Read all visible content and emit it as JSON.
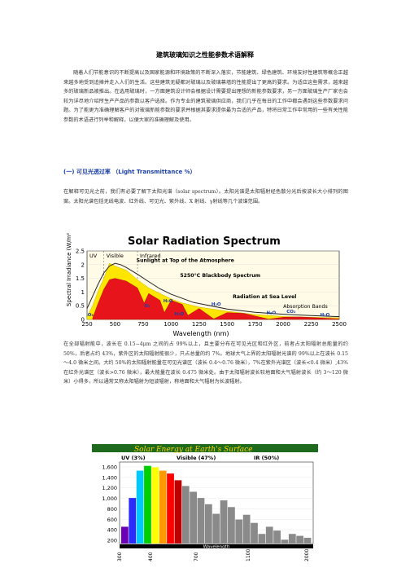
{
  "title": "建筑玻璃知识之性能参数术语解释",
  "intro": "随着人们节能意识的不断提高以及国家能源和环境政策的不断深入落实，节能建筑、绿色建筑、环境友好性建筑等概念正越来越多地受到追捧并走入人们的生活。这些建筑无疑都对玻璃以及玻璃幕墙的性能提出了更高的要求。为适应这些需求，越来越多的玻璃新品被推出。在选用玻璃时，一方面建筑设计师会根据设计需要提出理想的新能参数要求，另一方面玻璃生产厂家也会较为详尽地介绍所生产产品的参数以客户选择。作为专业的建筑玻璃供应商，我们几乎在每日的工作中都会遇到这些参数要求问题。为了能更为准确理解客户的对玻璃新能参数的要求并根据其要求提供最为合适的产品，特将日常工作中常用的一些有关性能参数的术语进行列举和解释，以便大家的准确理解及使用。",
  "section_heading": "(一) 可见光透过率 （Light Transmittance %）",
  "para2": "在解释可见光之前，我们有必要了解下太阳光谱（solar spectrum）。太阳光谱是太阳辐射经色散分光后按波长大小排列的图案。太阳光谱包括无线电波、红外线、可见光、紫外线、X 射线、γ射线等几个波谱范围。",
  "para3": "在全部辐射能中，波长在 0.15−4μm 之间的占 99%以上，且主要分布在可见光区和红外区，前者占太阳辐射总能量的约 50%，后者占约 43%，紫外区的太阳辐射能很少，只占总量的约 7%。地球大气上界的太阳辐射光谱的 99%以上在波长 0.15～4.0 微米之间。大约 50%的太阳辐射能量在可见光谱区（波长 0.4～0.76 微米），7%在紫外光谱区（波长<0.4 微米）,43%在红外光谱区（波长>0.76 微米），最大能量在波长 0.475 微米处。由于太阳辐射波长较地面和大气辐射波长（约 3～120 微米）小得多，所以通常又称太阳辐射为短波辐射，称地面和大气辐射为长波辐射。",
  "chart_data": [
    {
      "type": "area",
      "title": "Solar Radiation Spectrum",
      "xlabel": "Wavelength (nm)",
      "ylabel": "Spectral Irradiance (W/m²/nm)",
      "xlim": [
        250,
        2500
      ],
      "ylim": [
        0,
        2.5
      ],
      "x_ticks": [
        250,
        500,
        750,
        1000,
        1250,
        1500,
        1750,
        2000,
        2250,
        2500
      ],
      "y_ticks": [
        0,
        0.5,
        1,
        1.5,
        2,
        2.5
      ],
      "region_labels": [
        "UV",
        "Visible",
        "Infrared"
      ],
      "annotations": [
        "Sunlight at Top of the Atmosphere",
        "5250°C Blackbody Spectrum",
        "Radiation at Sea Level",
        "Absorption Bands"
      ],
      "absorption_labels": [
        "H₂O",
        "O₂",
        "O₃",
        "CO₂"
      ],
      "series": [
        {
          "name": "Sunlight at Top of the Atmosphere",
          "x": [
            250,
            300,
            350,
            400,
            450,
            500,
            550,
            600,
            700,
            800,
            900,
            1000,
            1100,
            1250,
            1500,
            1750,
            2000,
            2250,
            2500
          ],
          "y": [
            0.1,
            0.5,
            1.05,
            1.5,
            2.05,
            1.95,
            1.87,
            1.8,
            1.45,
            1.15,
            0.95,
            0.75,
            0.6,
            0.45,
            0.3,
            0.18,
            0.11,
            0.08,
            0.06
          ]
        },
        {
          "name": "Radiation at Sea Level",
          "x": [
            300,
            350,
            400,
            450,
            500,
            550,
            600,
            700,
            760,
            800,
            900,
            940,
            1000,
            1100,
            1150,
            1250,
            1380,
            1500,
            1650,
            1870,
            2000,
            2150,
            2300,
            2500
          ],
          "y": [
            0.05,
            0.6,
            1.1,
            1.45,
            1.5,
            1.45,
            1.4,
            1.15,
            0.6,
            0.95,
            0.7,
            0.25,
            0.7,
            0.55,
            0.15,
            0.4,
            0.02,
            0.25,
            0.22,
            0.01,
            0.08,
            0.09,
            0.06,
            0.02
          ]
        },
        {
          "name": "5250°C Blackbody Spectrum",
          "x": [
            250,
            300,
            350,
            400,
            450,
            500,
            550,
            600,
            700,
            800,
            900,
            1000,
            1200,
            1500,
            1750,
            2000,
            2250,
            2500
          ],
          "y": [
            0.4,
            0.85,
            1.3,
            1.7,
            1.95,
            2.05,
            2.0,
            1.9,
            1.65,
            1.38,
            1.12,
            0.92,
            0.62,
            0.38,
            0.26,
            0.19,
            0.14,
            0.1
          ]
        }
      ]
    },
    {
      "type": "bar",
      "title": "Solar Energy at Earth's Surface",
      "region_labels": [
        "UV (3%)",
        "Visible (47%)",
        "IR (50%)"
      ],
      "xlabel": "Wavelength",
      "x_ticks": [
        "300",
        "400",
        "700",
        "1100",
        "2000"
      ],
      "y_ticks": [
        "1,600",
        "1,400",
        "1,200",
        "1,000",
        "800",
        "600",
        "400",
        "200"
      ],
      "ylim": [
        0,
        1700
      ],
      "bar_colors": [
        "#6b00b5",
        "#2b2bff",
        "#00c8ff",
        "#00d000",
        "#ffff00",
        "#ff9900",
        "#ff0000",
        "#c00000",
        "#888888"
      ],
      "values": [
        350,
        950,
        1520,
        1620,
        1590,
        1520,
        1460,
        1320,
        1200,
        1080,
        950,
        820,
        620,
        900,
        760,
        500,
        600,
        430,
        200,
        350,
        270,
        80,
        200,
        160,
        120
      ]
    }
  ],
  "colors": {
    "heading": "#1a3ea8",
    "fig_band": "#1e6b1e"
  }
}
